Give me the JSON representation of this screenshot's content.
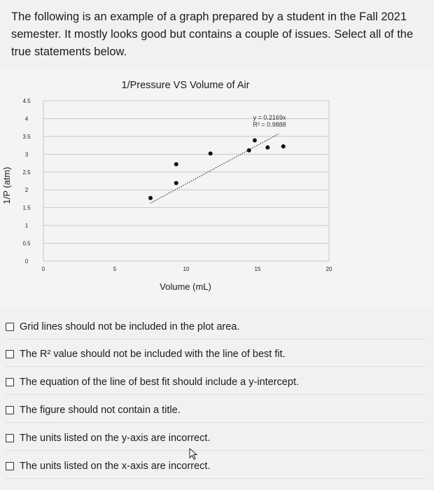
{
  "intro": "The following is an example of a graph prepared by a student in the Fall 2021 semester. It mostly looks good but contains a couple of issues. Select all of the true statements below.",
  "chart_data": {
    "type": "scatter",
    "title": "1/Pressure VS Volume of Air",
    "xlabel": "Volume (mL)",
    "ylabel": "1/P (atm)",
    "xlim": [
      0,
      20
    ],
    "ylim": [
      0,
      4.5
    ],
    "x_ticks": [
      "0",
      "5",
      "10",
      "15",
      "20"
    ],
    "y_ticks": [
      "0",
      "0.5",
      "1",
      "1.5",
      "2",
      "2.5",
      "3",
      "3.5",
      "4",
      "4.5"
    ],
    "grid": true,
    "points": [
      {
        "x": 7.5,
        "y": 1.77
      },
      {
        "x": 9.3,
        "y": 2.19
      },
      {
        "x": 9.3,
        "y": 2.72
      },
      {
        "x": 11.7,
        "y": 3.02
      },
      {
        "x": 14.4,
        "y": 3.11
      },
      {
        "x": 14.8,
        "y": 3.39
      },
      {
        "x": 15.7,
        "y": 3.19
      },
      {
        "x": 16.8,
        "y": 3.22
      }
    ],
    "trendline": {
      "slope": 0.2169,
      "x_range": [
        7.5,
        16.5
      ],
      "style": "dotted"
    },
    "trendline_label_eq": "y = 0.2169x",
    "trendline_label_r2": "R² = 0.9888",
    "colors": {
      "points": "#111111",
      "trendline": "#333333",
      "grid": "#c8c8c8"
    }
  },
  "options": [
    "Grid lines should not be included in the plot area.",
    "The R² value should not be included with the line of best fit.",
    "The equation of the line of best fit should include a y-intercept.",
    "The figure should not contain a title.",
    "The units listed on the y-axis are incorrect.",
    "The units listed on the x-axis are incorrect."
  ]
}
